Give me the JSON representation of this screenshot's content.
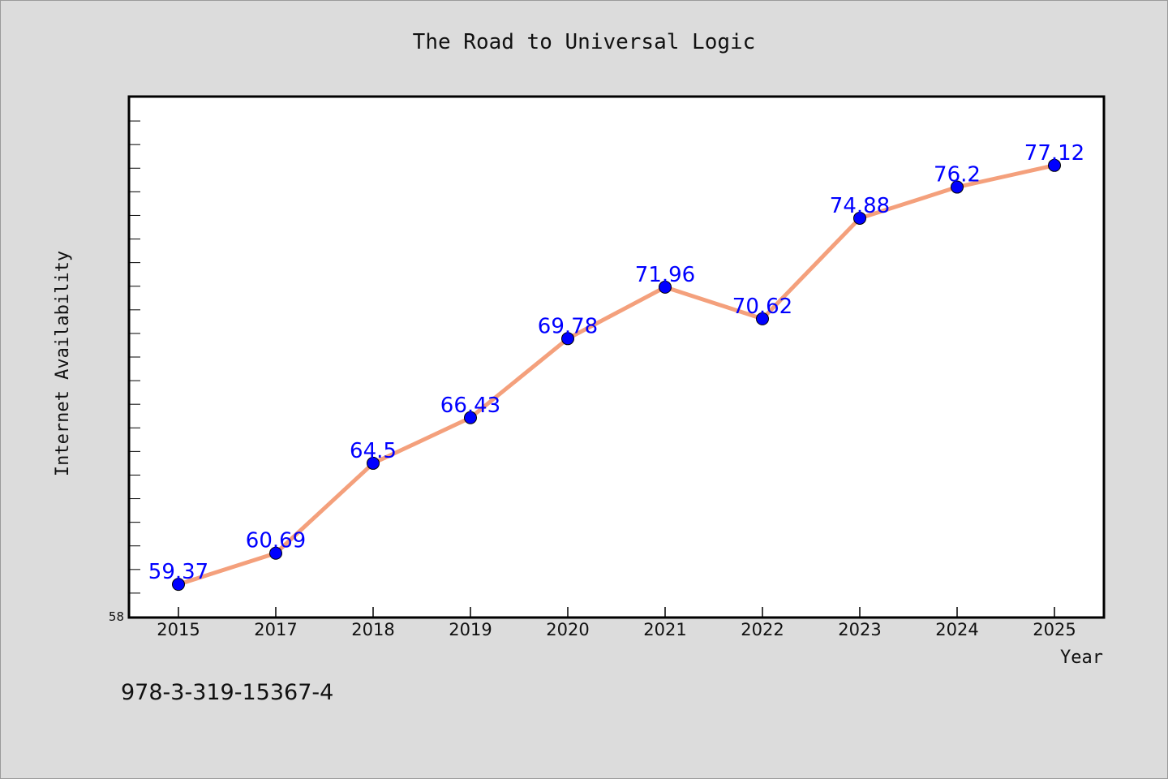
{
  "chart_data": {
    "type": "line",
    "title": "The Road to Universal Logic",
    "xlabel": "Year",
    "ylabel": "Internet Availability",
    "categories": [
      "2015",
      "2017",
      "2018",
      "2019",
      "2020",
      "2021",
      "2022",
      "2023",
      "2024",
      "2025"
    ],
    "values": [
      59.37,
      60.69,
      64.5,
      66.43,
      69.78,
      71.96,
      70.62,
      74.88,
      76.2,
      77.12
    ],
    "data_labels": [
      "59.37",
      "60.69",
      "64.5",
      "66.43",
      "69.78",
      "71.96",
      "70.62",
      "74.88",
      "76.2",
      "77.12"
    ],
    "ylim": [
      58,
      80
    ],
    "y_tick_labels": [
      "58"
    ],
    "grid": false,
    "legend": "none",
    "line_color": "#f4a07c",
    "marker_color": "#0000ff",
    "label_color": "#0000ff"
  },
  "footer": {
    "isbn": "978-3-319-15367-4"
  }
}
